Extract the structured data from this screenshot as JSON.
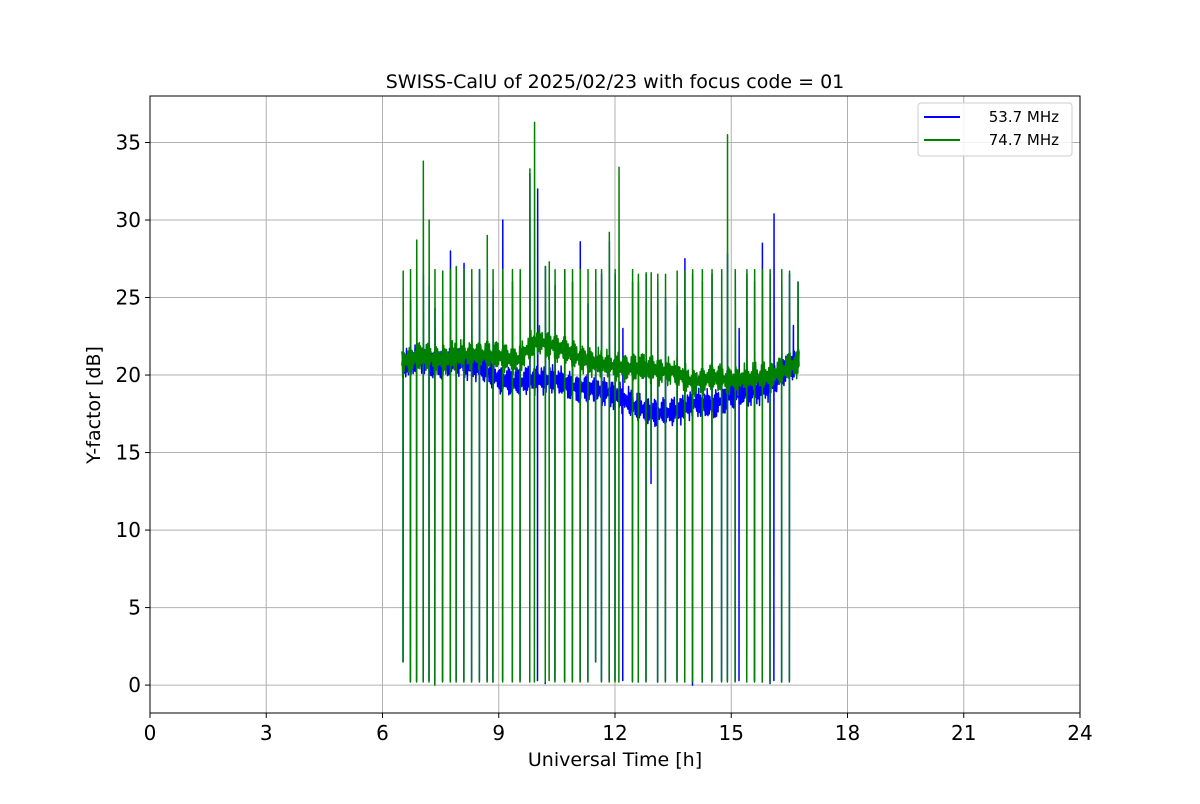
{
  "chart_data": {
    "type": "line",
    "title": "SWISS-CalU of 2025/02/23 with focus code = 01",
    "xlabel": "Universal Time [h]",
    "ylabel": "Y-factor [dB]",
    "xlim": [
      0,
      24
    ],
    "ylim": [
      -1.8,
      38
    ],
    "xticks": [
      0,
      3,
      6,
      9,
      12,
      15,
      18,
      21,
      24
    ],
    "yticks": [
      0,
      5,
      10,
      15,
      20,
      25,
      30,
      35
    ],
    "grid": true,
    "legend_position": "top-right",
    "series": [
      {
        "name": "53.7 MHz",
        "color": "#0000ff",
        "baseline": [
          [
            6.5,
            20.6
          ],
          [
            7.0,
            21.0
          ],
          [
            7.5,
            20.6
          ],
          [
            8.0,
            20.8
          ],
          [
            8.5,
            20.5
          ],
          [
            9.0,
            19.8
          ],
          [
            9.5,
            19.5
          ],
          [
            10.0,
            19.8
          ],
          [
            10.5,
            19.6
          ],
          [
            11.0,
            19.2
          ],
          [
            11.5,
            19.0
          ],
          [
            12.0,
            18.8
          ],
          [
            12.5,
            18.0
          ],
          [
            13.0,
            17.6
          ],
          [
            13.5,
            17.6
          ],
          [
            14.0,
            18.2
          ],
          [
            14.5,
            18.0
          ],
          [
            15.0,
            18.7
          ],
          [
            15.5,
            18.9
          ],
          [
            16.0,
            19.3
          ],
          [
            16.5,
            20.5
          ],
          [
            16.75,
            21.0
          ]
        ],
        "spikes": [
          [
            6.53,
            1.5,
            21.3
          ],
          [
            6.72,
            0.3,
            24.8
          ],
          [
            6.88,
            0.3,
            25.5
          ],
          [
            7.05,
            0.3,
            26.5
          ],
          [
            7.2,
            0.3,
            25.8
          ],
          [
            7.35,
            0.1,
            24.3
          ],
          [
            7.55,
            0.3,
            25.6
          ],
          [
            7.75,
            0.3,
            28.0
          ],
          [
            7.9,
            0.3,
            26.0
          ],
          [
            8.1,
            0.3,
            27.2
          ],
          [
            8.3,
            0.3,
            25.5
          ],
          [
            8.5,
            0.3,
            26.8
          ],
          [
            8.7,
            0.3,
            26.0
          ],
          [
            8.85,
            0.2,
            25.5
          ],
          [
            9.1,
            0.3,
            30.0
          ],
          [
            9.35,
            0.3,
            26.0
          ],
          [
            9.55,
            0.3,
            26.5
          ],
          [
            9.8,
            0.3,
            33.0
          ],
          [
            10.0,
            0.3,
            32.0
          ],
          [
            10.2,
            0.1,
            27.0
          ],
          [
            10.45,
            0.3,
            25.8
          ],
          [
            10.7,
            0.3,
            26.8
          ],
          [
            10.9,
            0.3,
            26.0
          ],
          [
            11.1,
            0.3,
            28.6
          ],
          [
            11.3,
            0.3,
            24.6
          ],
          [
            11.5,
            1.5,
            26.0
          ],
          [
            11.65,
            0.3,
            26.5
          ],
          [
            11.85,
            0.3,
            28.6
          ],
          [
            12.0,
            0.3,
            26.5
          ],
          [
            12.2,
            0.3,
            23.0
          ],
          [
            12.45,
            0.3,
            26.0
          ],
          [
            12.6,
            0.2,
            26.0
          ],
          [
            12.8,
            0.3,
            26.5
          ],
          [
            12.93,
            13.0,
            20.5
          ],
          [
            13.1,
            0.2,
            26.0
          ],
          [
            13.3,
            0.3,
            25.0
          ],
          [
            13.6,
            0.3,
            24.5
          ],
          [
            13.8,
            0.3,
            27.5
          ],
          [
            14.0,
            0.0,
            26.5
          ],
          [
            14.25,
            0.2,
            26.0
          ],
          [
            14.5,
            0.3,
            26.5
          ],
          [
            14.75,
            0.3,
            26.5
          ],
          [
            14.9,
            0.3,
            27.8
          ],
          [
            15.1,
            0.3,
            26.5
          ],
          [
            15.2,
            0.3,
            23.0
          ],
          [
            15.4,
            0.3,
            26.5
          ],
          [
            15.6,
            0.3,
            26.0
          ],
          [
            15.8,
            0.2,
            28.5
          ],
          [
            16.0,
            0.1,
            26.5
          ],
          [
            16.1,
            0.3,
            30.4
          ],
          [
            16.3,
            0.2,
            26.0
          ],
          [
            16.5,
            0.3,
            26.5
          ],
          [
            16.6,
            20.0,
            23.2
          ],
          [
            16.72,
            20.5,
            26.0
          ]
        ]
      },
      {
        "name": "74.7 MHz",
        "color": "#008000",
        "baseline": [
          [
            6.5,
            20.8
          ],
          [
            7.0,
            21.2
          ],
          [
            7.5,
            21.0
          ],
          [
            8.0,
            21.3
          ],
          [
            8.5,
            21.4
          ],
          [
            9.0,
            21.2
          ],
          [
            9.5,
            21.0
          ],
          [
            10.0,
            22.2
          ],
          [
            10.5,
            21.8
          ],
          [
            11.0,
            21.2
          ],
          [
            11.5,
            20.8
          ],
          [
            12.0,
            20.6
          ],
          [
            12.5,
            20.5
          ],
          [
            13.0,
            20.4
          ],
          [
            13.5,
            20.2
          ],
          [
            14.0,
            19.5
          ],
          [
            14.5,
            19.8
          ],
          [
            15.0,
            19.7
          ],
          [
            15.5,
            19.8
          ],
          [
            16.0,
            20.0
          ],
          [
            16.5,
            20.5
          ],
          [
            16.75,
            20.8
          ]
        ],
        "spikes": [
          [
            6.53,
            1.5,
            26.7
          ],
          [
            6.72,
            0.2,
            26.8
          ],
          [
            6.88,
            0.2,
            28.7
          ],
          [
            7.05,
            0.2,
            33.8
          ],
          [
            7.2,
            0.2,
            30.0
          ],
          [
            7.35,
            0.0,
            26.8
          ],
          [
            7.55,
            0.2,
            26.7
          ],
          [
            7.75,
            0.2,
            26.8
          ],
          [
            7.9,
            0.2,
            27.0
          ],
          [
            8.1,
            0.2,
            26.8
          ],
          [
            8.3,
            0.2,
            26.8
          ],
          [
            8.5,
            0.2,
            26.8
          ],
          [
            8.7,
            0.2,
            29.0
          ],
          [
            8.85,
            0.2,
            26.8
          ],
          [
            9.1,
            0.2,
            26.8
          ],
          [
            9.35,
            0.2,
            26.8
          ],
          [
            9.55,
            0.2,
            26.8
          ],
          [
            9.8,
            0.2,
            33.3
          ],
          [
            9.92,
            0.2,
            36.3
          ],
          [
            10.2,
            0.2,
            27.0
          ],
          [
            10.3,
            0.3,
            27.3
          ],
          [
            10.45,
            0.2,
            26.8
          ],
          [
            10.7,
            0.2,
            26.8
          ],
          [
            10.9,
            0.2,
            26.8
          ],
          [
            11.1,
            0.2,
            26.8
          ],
          [
            11.3,
            0.2,
            26.8
          ],
          [
            11.5,
            1.5,
            26.8
          ],
          [
            11.65,
            0.2,
            26.8
          ],
          [
            11.85,
            0.2,
            29.2
          ],
          [
            12.0,
            0.2,
            26.8
          ],
          [
            12.1,
            0.2,
            33.4
          ],
          [
            12.45,
            0.2,
            26.8
          ],
          [
            12.6,
            0.2,
            26.5
          ],
          [
            12.8,
            0.2,
            26.6
          ],
          [
            12.93,
            14.0,
            26.6
          ],
          [
            13.1,
            0.2,
            26.5
          ],
          [
            13.3,
            0.2,
            26.5
          ],
          [
            13.6,
            0.2,
            26.7
          ],
          [
            13.8,
            0.2,
            26.7
          ],
          [
            14.0,
            0.2,
            26.8
          ],
          [
            14.25,
            0.2,
            26.8
          ],
          [
            14.5,
            0.2,
            26.8
          ],
          [
            14.75,
            0.2,
            26.8
          ],
          [
            14.9,
            0.2,
            35.5
          ],
          [
            15.1,
            0.2,
            26.8
          ],
          [
            15.4,
            0.2,
            26.8
          ],
          [
            15.6,
            0.2,
            26.8
          ],
          [
            15.8,
            0.2,
            26.8
          ],
          [
            16.0,
            0.2,
            26.8
          ],
          [
            16.3,
            0.2,
            26.8
          ],
          [
            16.5,
            0.2,
            26.7
          ],
          [
            16.72,
            20.5,
            26.0
          ]
        ]
      }
    ]
  }
}
